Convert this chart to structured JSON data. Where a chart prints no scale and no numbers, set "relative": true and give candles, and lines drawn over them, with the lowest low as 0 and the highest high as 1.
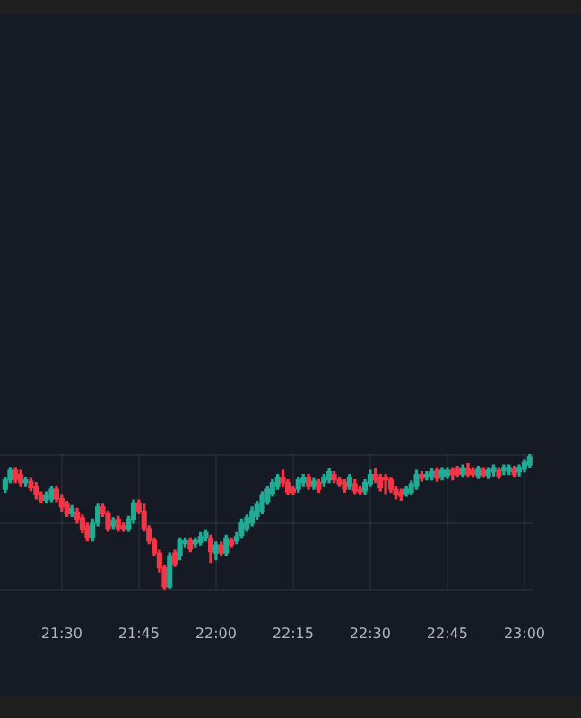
{
  "chart_data": {
    "type": "candlestick",
    "relative": true,
    "grid": true,
    "xlim": [
      21.3,
      23.03
    ],
    "xticks": [
      {
        "value": 21.5,
        "label": "21:30"
      },
      {
        "value": 21.75,
        "label": "21:45"
      },
      {
        "value": 22,
        "label": "22:00"
      },
      {
        "value": 22.25,
        "label": "22:15"
      },
      {
        "value": 22.5,
        "label": "22:30"
      },
      {
        "value": 22.75,
        "label": "22:45"
      },
      {
        "value": 23,
        "label": "23:00"
      }
    ],
    "x": [
      21.317,
      21.333,
      21.35,
      21.367,
      21.383,
      21.4,
      21.417,
      21.433,
      21.45,
      21.467,
      21.483,
      21.5,
      21.517,
      21.533,
      21.55,
      21.567,
      21.583,
      21.6,
      21.617,
      21.633,
      21.65,
      21.667,
      21.683,
      21.7,
      21.717,
      21.733,
      21.75,
      21.767,
      21.783,
      21.8,
      21.817,
      21.833,
      21.85,
      21.867,
      21.883,
      21.9,
      21.917,
      21.933,
      21.95,
      21.967,
      21.983,
      22,
      22.017,
      22.033,
      22.05,
      22.067,
      22.083,
      22.1,
      22.117,
      22.133,
      22.15,
      22.167,
      22.183,
      22.2,
      22.217,
      22.233,
      22.25,
      22.267,
      22.283,
      22.3,
      22.317,
      22.333,
      22.35,
      22.367,
      22.383,
      22.4,
      22.417,
      22.433,
      22.45,
      22.467,
      22.483,
      22.5,
      22.517,
      22.533,
      22.55,
      22.567,
      22.583,
      22.6,
      22.617,
      22.633,
      22.65,
      22.667,
      22.683,
      22.7,
      22.717,
      22.733,
      22.75,
      22.767,
      22.783,
      22.8,
      22.817,
      22.833,
      22.85,
      22.867,
      22.883,
      22.9,
      22.917,
      22.933,
      22.95,
      22.967,
      22.983,
      23,
      23.017
    ],
    "ohlc": [
      [
        0.74,
        0.83,
        0.72,
        0.81
      ],
      [
        0.81,
        0.9,
        0.79,
        0.88
      ],
      [
        0.88,
        0.9,
        0.79,
        0.81
      ],
      [
        0.85,
        0.88,
        0.76,
        0.79
      ],
      [
        0.79,
        0.83,
        0.76,
        0.81
      ],
      [
        0.8,
        0.82,
        0.73,
        0.75
      ],
      [
        0.76,
        0.79,
        0.67,
        0.7
      ],
      [
        0.7,
        0.72,
        0.64,
        0.66
      ],
      [
        0.66,
        0.72,
        0.64,
        0.7
      ],
      [
        0.67,
        0.76,
        0.65,
        0.74
      ],
      [
        0.74,
        0.76,
        0.65,
        0.67
      ],
      [
        0.67,
        0.7,
        0.58,
        0.61
      ],
      [
        0.63,
        0.65,
        0.54,
        0.56
      ],
      [
        0.56,
        0.62,
        0.54,
        0.6
      ],
      [
        0.57,
        0.6,
        0.49,
        0.52
      ],
      [
        0.53,
        0.55,
        0.42,
        0.44
      ],
      [
        0.47,
        0.49,
        0.36,
        0.38
      ],
      [
        0.38,
        0.52,
        0.36,
        0.49
      ],
      [
        0.49,
        0.63,
        0.47,
        0.61
      ],
      [
        0.61,
        0.63,
        0.54,
        0.56
      ],
      [
        0.56,
        0.58,
        0.43,
        0.45
      ],
      [
        0.47,
        0.53,
        0.45,
        0.51
      ],
      [
        0.52,
        0.54,
        0.43,
        0.45
      ],
      [
        0.47,
        0.49,
        0.43,
        0.45
      ],
      [
        0.45,
        0.54,
        0.43,
        0.52
      ],
      [
        0.52,
        0.66,
        0.49,
        0.64
      ],
      [
        0.64,
        0.66,
        0.56,
        0.58
      ],
      [
        0.58,
        0.63,
        0.43,
        0.45
      ],
      [
        0.45,
        0.47,
        0.34,
        0.36
      ],
      [
        0.36,
        0.38,
        0.25,
        0.27
      ],
      [
        0.27,
        0.29,
        0.13,
        0.16
      ],
      [
        0.16,
        0.18,
        0,
        0.02
      ],
      [
        0.02,
        0.27,
        0.01,
        0.25
      ],
      [
        0.27,
        0.29,
        0.17,
        0.19
      ],
      [
        0.25,
        0.38,
        0.22,
        0.36
      ],
      [
        0.34,
        0.38,
        0.31,
        0.36
      ],
      [
        0.36,
        0.38,
        0.28,
        0.3
      ],
      [
        0.34,
        0.38,
        0.31,
        0.36
      ],
      [
        0.35,
        0.42,
        0.33,
        0.39
      ],
      [
        0.38,
        0.44,
        0.36,
        0.42
      ],
      [
        0.38,
        0.4,
        0.2,
        0.28
      ],
      [
        0.27,
        0.35,
        0.22,
        0.33
      ],
      [
        0.33,
        0.35,
        0.25,
        0.27
      ],
      [
        0.27,
        0.4,
        0.25,
        0.38
      ],
      [
        0.36,
        0.38,
        0.31,
        0.33
      ],
      [
        0.36,
        0.42,
        0.34,
        0.39
      ],
      [
        0.4,
        0.52,
        0.38,
        0.49
      ],
      [
        0.45,
        0.55,
        0.43,
        0.53
      ],
      [
        0.49,
        0.61,
        0.47,
        0.58
      ],
      [
        0.54,
        0.65,
        0.52,
        0.63
      ],
      [
        0.58,
        0.72,
        0.56,
        0.7
      ],
      [
        0.65,
        0.76,
        0.63,
        0.74
      ],
      [
        0.71,
        0.81,
        0.69,
        0.79
      ],
      [
        0.76,
        0.85,
        0.74,
        0.83
      ],
      [
        0.83,
        0.88,
        0.76,
        0.79
      ],
      [
        0.79,
        0.81,
        0.7,
        0.72
      ],
      [
        0.74,
        0.76,
        0.7,
        0.72
      ],
      [
        0.74,
        0.83,
        0.72,
        0.81
      ],
      [
        0.79,
        0.85,
        0.76,
        0.83
      ],
      [
        0.83,
        0.85,
        0.74,
        0.76
      ],
      [
        0.76,
        0.82,
        0.74,
        0.8
      ],
      [
        0.79,
        0.81,
        0.72,
        0.74
      ],
      [
        0.79,
        0.85,
        0.76,
        0.83
      ],
      [
        0.81,
        0.89,
        0.79,
        0.87
      ],
      [
        0.85,
        0.87,
        0.79,
        0.81
      ],
      [
        0.81,
        0.83,
        0.76,
        0.78
      ],
      [
        0.79,
        0.81,
        0.72,
        0.74
      ],
      [
        0.76,
        0.85,
        0.74,
        0.83
      ],
      [
        0.78,
        0.81,
        0.71,
        0.73
      ],
      [
        0.74,
        0.76,
        0.7,
        0.72
      ],
      [
        0.73,
        0.81,
        0.7,
        0.79
      ],
      [
        0.78,
        0.88,
        0.76,
        0.85
      ],
      [
        0.85,
        0.89,
        0.79,
        0.81
      ],
      [
        0.83,
        0.85,
        0.73,
        0.75
      ],
      [
        0.83,
        0.85,
        0.71,
        0.81
      ],
      [
        0.81,
        0.83,
        0.72,
        0.74
      ],
      [
        0.74,
        0.76,
        0.67,
        0.7
      ],
      [
        0.72,
        0.74,
        0.66,
        0.69
      ],
      [
        0.71,
        0.76,
        0.69,
        0.74
      ],
      [
        0.72,
        0.8,
        0.7,
        0.78
      ],
      [
        0.76,
        0.88,
        0.74,
        0.85
      ],
      [
        0.85,
        0.87,
        0.8,
        0.82
      ],
      [
        0.83,
        0.87,
        0.81,
        0.85
      ],
      [
        0.83,
        0.89,
        0.81,
        0.87
      ],
      [
        0.88,
        0.9,
        0.8,
        0.82
      ],
      [
        0.83,
        0.9,
        0.81,
        0.88
      ],
      [
        0.84,
        0.9,
        0.82,
        0.88
      ],
      [
        0.88,
        0.9,
        0.81,
        0.85
      ],
      [
        0.89,
        0.91,
        0.83,
        0.85
      ],
      [
        0.85,
        0.92,
        0.83,
        0.9
      ],
      [
        0.89,
        0.93,
        0.83,
        0.85
      ],
      [
        0.88,
        0.9,
        0.83,
        0.85
      ],
      [
        0.84,
        0.91,
        0.82,
        0.89
      ],
      [
        0.88,
        0.9,
        0.83,
        0.85
      ],
      [
        0.84,
        0.9,
        0.82,
        0.88
      ],
      [
        0.87,
        0.92,
        0.84,
        0.9
      ],
      [
        0.88,
        0.9,
        0.82,
        0.84
      ],
      [
        0.88,
        0.92,
        0.85,
        0.9
      ],
      [
        0.87,
        0.92,
        0.85,
        0.9
      ],
      [
        0.89,
        0.91,
        0.83,
        0.85
      ],
      [
        0.87,
        0.92,
        0.84,
        0.9
      ],
      [
        0.89,
        0.96,
        0.87,
        0.94
      ],
      [
        0.92,
        1,
        0.9,
        0.98
      ]
    ]
  }
}
